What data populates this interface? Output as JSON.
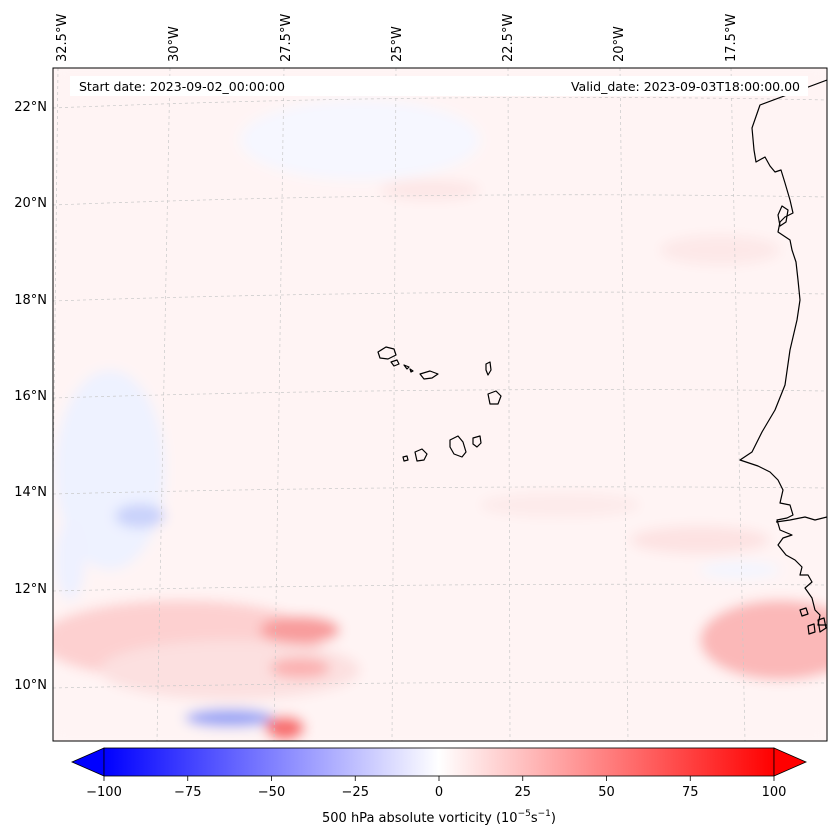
{
  "map": {
    "start_date": "Start date: 2023-09-02_00:00:00",
    "valid_date": "Valid_date: 2023-09-03T18:00:00.00",
    "lon_labels": [
      "32.5°W",
      "30°W",
      "27.5°W",
      "25°W",
      "22.5°W",
      "20°W",
      "17.5°W"
    ],
    "lat_labels": [
      "22°N",
      "20°N",
      "18°N",
      "16°N",
      "14°N",
      "12°N",
      "10°N"
    ]
  },
  "colorbar": {
    "label": "500 hPa absolute vorticity (10",
    "label_sup1": "−5",
    "label_mid": "s",
    "label_sup2": "−1",
    "label_end": ")",
    "min": -100,
    "max": 100,
    "ticks": [
      "−100",
      "−75",
      "−50",
      "−25",
      "0",
      "25",
      "50",
      "75",
      "100"
    ],
    "colors": {
      "negative": "#0000ff",
      "zero": "#ffffff",
      "positive": "#ff0000"
    }
  }
}
